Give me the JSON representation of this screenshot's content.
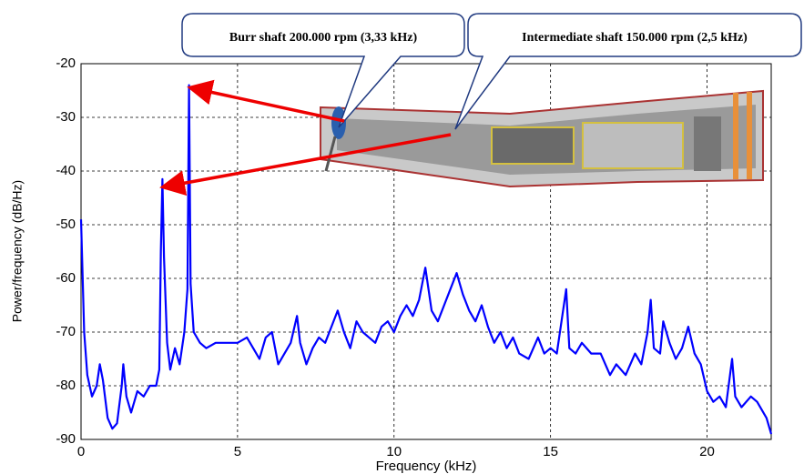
{
  "chart_data": {
    "type": "line",
    "xlabel": "Frequency (kHz)",
    "ylabel": "Power/frequency (dB/Hz)",
    "annotations": [
      "Burr shaft 200.000 rpm (3,33 kHz)",
      "Intermediate shaft 150.000 rpm (2,5 kHz)"
    ],
    "color": "#0000ff",
    "grid": true,
    "xlim": [
      0,
      22.05
    ],
    "ylim": [
      -90,
      -20
    ],
    "xticks": [
      0,
      5,
      10,
      15,
      20
    ],
    "yticks": [
      -20,
      -30,
      -40,
      -50,
      -60,
      -70,
      -80,
      -90
    ],
    "x": [
      0,
      0.1,
      0.2,
      0.35,
      0.5,
      0.6,
      0.7,
      0.85,
      1.0,
      1.15,
      1.3,
      1.35,
      1.45,
      1.6,
      1.8,
      2.0,
      2.2,
      2.4,
      2.5,
      2.55,
      2.6,
      2.65,
      2.75,
      2.85,
      3.0,
      3.15,
      3.3,
      3.4,
      3.45,
      3.5,
      3.6,
      3.8,
      4.0,
      4.3,
      4.6,
      5.0,
      5.3,
      5.5,
      5.7,
      5.9,
      6.1,
      6.3,
      6.5,
      6.7,
      6.9,
      7.0,
      7.2,
      7.4,
      7.6,
      7.8,
      8.0,
      8.2,
      8.4,
      8.6,
      8.8,
      9.0,
      9.2,
      9.4,
      9.6,
      9.8,
      10.0,
      10.2,
      10.4,
      10.6,
      10.8,
      11.0,
      11.2,
      11.4,
      11.6,
      11.8,
      12.0,
      12.2,
      12.4,
      12.6,
      12.8,
      13.0,
      13.2,
      13.4,
      13.6,
      13.8,
      14.0,
      14.3,
      14.6,
      14.8,
      15.0,
      15.2,
      15.5,
      15.6,
      15.8,
      16.0,
      16.3,
      16.6,
      16.9,
      17.1,
      17.4,
      17.7,
      17.9,
      18.1,
      18.2,
      18.3,
      18.5,
      18.6,
      18.8,
      19.0,
      19.2,
      19.4,
      19.6,
      19.8,
      20.0,
      20.2,
      20.4,
      20.6,
      20.8,
      20.9,
      21.1,
      21.4,
      21.6,
      21.9,
      22.05
    ],
    "values": [
      -49,
      -70,
      -78,
      -82,
      -80,
      -76,
      -79,
      -86,
      -88,
      -87,
      -80,
      -76,
      -82,
      -85,
      -81,
      -82,
      -80,
      -80,
      -77,
      -55,
      -41.5,
      -56,
      -72,
      -77,
      -73,
      -76,
      -70,
      -62,
      -24,
      -61,
      -70,
      -72,
      -73,
      -72,
      -72,
      -72,
      -71,
      -73,
      -75,
      -71,
      -70,
      -76,
      -74,
      -72,
      -67,
      -72,
      -76,
      -73,
      -71,
      -72,
      -69,
      -66,
      -70,
      -73,
      -68,
      -70,
      -71,
      -72,
      -69,
      -68,
      -70,
      -67,
      -65,
      -67,
      -64,
      -58,
      -66,
      -68,
      -65,
      -62,
      -59,
      -63,
      -66,
      -68,
      -65,
      -69,
      -72,
      -70,
      -73,
      -71,
      -74,
      -75,
      -71,
      -74,
      -73,
      -74,
      -62,
      -73,
      -74,
      -72,
      -74,
      -74,
      -78,
      -76,
      -78,
      -74,
      -76,
      -70,
      -64,
      -73,
      -74,
      -68,
      -72,
      -75,
      -73,
      -69,
      -74,
      -76,
      -81,
      -83,
      -82,
      -84,
      -75,
      -82,
      -84,
      -82,
      -83,
      -86,
      -89
    ]
  }
}
